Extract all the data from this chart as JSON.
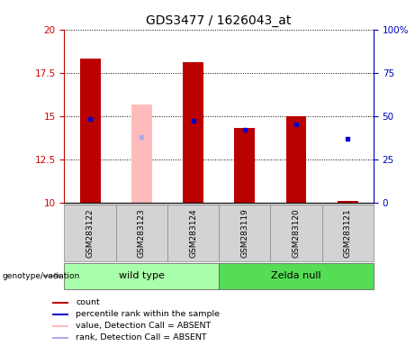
{
  "title": "GDS3477 / 1626043_at",
  "samples": [
    "GSM283122",
    "GSM283123",
    "GSM283124",
    "GSM283119",
    "GSM283120",
    "GSM283121"
  ],
  "groups": [
    "wild type",
    "wild type",
    "wild type",
    "Zelda null",
    "Zelda null",
    "Zelda null"
  ],
  "group_names": [
    "wild type",
    "Zelda null"
  ],
  "group_colors_light": [
    "#AAFFAA",
    "#55DD55"
  ],
  "ylim_left": [
    10,
    20
  ],
  "ylim_right": [
    0,
    100
  ],
  "yticks_left": [
    10,
    12.5,
    15,
    17.5,
    20
  ],
  "yticks_right": [
    0,
    25,
    50,
    75,
    100
  ],
  "bar_values": [
    18.3,
    null,
    18.1,
    14.3,
    15.0,
    10.1
  ],
  "bar_absent_values": [
    null,
    15.65,
    null,
    null,
    null,
    null
  ],
  "blue_squares_val": [
    14.8,
    null,
    14.7,
    14.2,
    14.5,
    13.7
  ],
  "blue_absent_squares_val": [
    null,
    13.8,
    null,
    null,
    null,
    null
  ],
  "bar_color": "#BB0000",
  "bar_absent_color": "#FFBBBB",
  "blue_color": "#0000CC",
  "blue_absent_color": "#AAAAEE",
  "bar_width": 0.4,
  "bar_bottom": 10,
  "background_color": "#FFFFFF",
  "sample_label_color": "#D3D3D3",
  "left_axis_color": "#CC0000",
  "right_axis_color": "#0000BB",
  "legend_labels": [
    "count",
    "percentile rank within the sample",
    "value, Detection Call = ABSENT",
    "rank, Detection Call = ABSENT"
  ]
}
